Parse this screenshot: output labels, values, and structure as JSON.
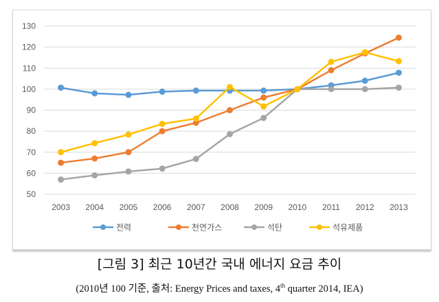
{
  "chart_data": {
    "type": "line",
    "title": "",
    "xlabel": "",
    "ylabel": "",
    "x": [
      "2003",
      "2004",
      "2005",
      "2006",
      "2007",
      "2008",
      "2009",
      "2010",
      "2011",
      "2012",
      "2013"
    ],
    "ylim": [
      50,
      130
    ],
    "yticks": [
      50,
      60,
      70,
      80,
      90,
      100,
      110,
      120,
      130
    ],
    "grid": true,
    "legend": "bottom",
    "series": [
      {
        "name": "전력",
        "color": "#5b9bd5",
        "values": [
          100.7,
          98,
          97.3,
          98.8,
          99.3,
          99.3,
          99.3,
          100,
          101.8,
          104,
          107.8
        ]
      },
      {
        "name": "천연가스",
        "color": "#ed7d31",
        "values": [
          65,
          67,
          70,
          80,
          84,
          90,
          96,
          100,
          109,
          117,
          124.5
        ]
      },
      {
        "name": "석탄",
        "color": "#a5a5a5",
        "values": [
          57,
          59,
          60.8,
          62.2,
          66.8,
          78.6,
          86.3,
          100,
          100,
          100,
          100.7
        ]
      },
      {
        "name": "석유제품",
        "color": "#ffc000",
        "values": [
          70,
          74.3,
          78.4,
          83.5,
          86,
          101,
          91.8,
          100,
          113,
          117.5,
          113.3
        ]
      }
    ]
  },
  "caption": {
    "title": "[그림 3]  최근 10년간 국내 에너지 요금 추이",
    "source_prefix": "(2010년 100 기준, 출처: Energy Prices and taxes, 4",
    "source_sup": "th",
    "source_suffix": " quarter 2014, IEA)"
  }
}
